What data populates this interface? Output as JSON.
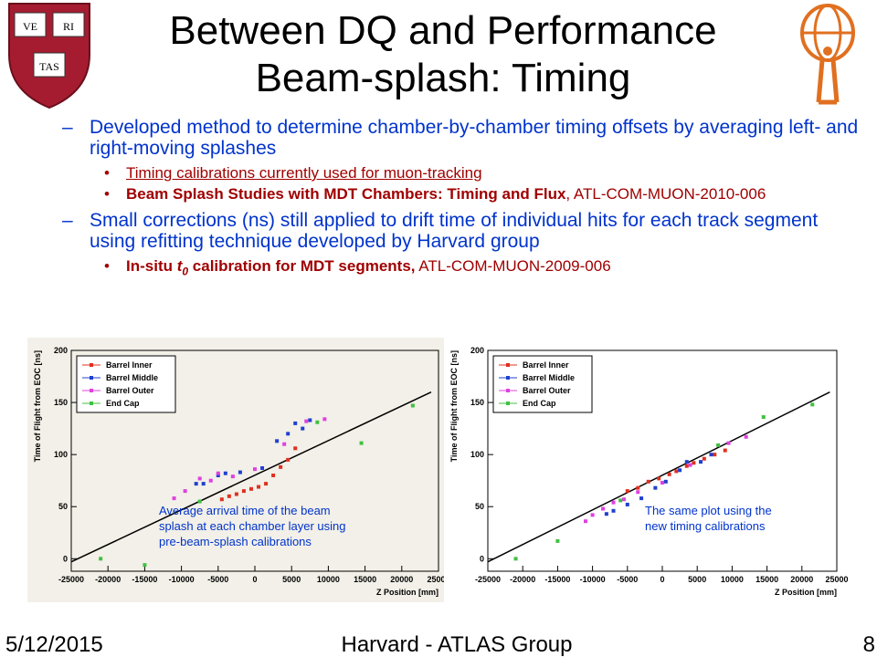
{
  "slide": {
    "title_line1": "Between DQ and Performance",
    "title_line2": "Beam-splash: Timing"
  },
  "logos": {
    "harvard": {
      "letters": [
        "VE",
        "RI",
        "TAS"
      ],
      "color": "#a51c30"
    },
    "atlas": {
      "color": "#e07020"
    }
  },
  "bullets": {
    "b1": {
      "dash": "–",
      "text": "Developed method to determine chamber-by-chamber timing offsets by averaging left- and right-moving splashes"
    },
    "b1_sub1": {
      "dot": "•",
      "text": "Timing calibrations currently used for muon-tracking"
    },
    "b1_sub2": {
      "dot": "•",
      "bold": "Beam Splash Studies with MDT Chambers: Timing and Flux",
      "rest": ", ATL-COM-MUON-2010-006"
    },
    "b2": {
      "dash": "–",
      "text": "Small corrections (ns) still applied to drift time of individual hits for each track segment using refitting technique developed by Harvard group"
    },
    "b2_sub1": {
      "dot": "•",
      "bold_a": "In-situ ",
      "italic_t": "t",
      "sub0": "0",
      "bold_b": " calibration for MDT segments,",
      "rest": " ATL-COM-MUON-2009-006"
    }
  },
  "footer": {
    "date": "5/12/2015",
    "center": "Harvard - ATLAS Group",
    "page": "8"
  },
  "colors": {
    "bullet_blue": "#0033cc",
    "bullet_red": "#a00000",
    "left_plot_bg": "#f2f0e8",
    "right_plot_bg": "#ffffff",
    "annotation": "#0033cc"
  },
  "chart_data": [
    {
      "type": "scatter",
      "xlabel": "Z Position [mm]",
      "ylabel": "Time of Flight from EOC [ns]",
      "xlim": [
        -25000,
        25000
      ],
      "ylim": [
        -12,
        200
      ],
      "xticks": [
        -25000,
        -20000,
        -15000,
        -10000,
        -5000,
        0,
        5000,
        10000,
        15000,
        20000,
        25000
      ],
      "xtick_labels": [
        "-25000",
        "-20000",
        "-15000",
        "-10000",
        "-5000",
        "0",
        "5000",
        "10000",
        "15000",
        "20000",
        "25000"
      ],
      "yticks": [
        0,
        50,
        100,
        150,
        200
      ],
      "ytick_labels": [
        "0",
        "50",
        "100",
        "150",
        "200"
      ],
      "legend_position": "top-left",
      "annotation": [
        "Average arrival time of the beam",
        "splash at each chamber layer using",
        "pre-beam-splash calibrations"
      ],
      "line": {
        "x": [
          -25000,
          24000
        ],
        "y": [
          -3,
          160
        ]
      },
      "series": [
        {
          "name": "Barrel Inner",
          "color": "#e03020",
          "points": [
            [
              -4500,
              57
            ],
            [
              -3500,
              60
            ],
            [
              -2500,
              62
            ],
            [
              -1500,
              65
            ],
            [
              -500,
              67
            ],
            [
              500,
              69
            ],
            [
              1500,
              72
            ],
            [
              2500,
              80
            ],
            [
              3500,
              88
            ],
            [
              4500,
              95
            ],
            [
              5500,
              106
            ]
          ]
        },
        {
          "name": "Barrel Middle",
          "color": "#2040d0",
          "points": [
            [
              -8000,
              72
            ],
            [
              -7000,
              72
            ],
            [
              -5000,
              80
            ],
            [
              -4000,
              82
            ],
            [
              -2000,
              83
            ],
            [
              1000,
              87
            ],
            [
              3000,
              113
            ],
            [
              4500,
              120
            ],
            [
              5500,
              130
            ],
            [
              6500,
              125
            ],
            [
              7500,
              133
            ]
          ]
        },
        {
          "name": "Barrel Outer",
          "color": "#e040e0",
          "points": [
            [
              -11000,
              58
            ],
            [
              -9500,
              65
            ],
            [
              -7500,
              77
            ],
            [
              -6000,
              75
            ],
            [
              -5000,
              82
            ],
            [
              -3000,
              79
            ],
            [
              0,
              86
            ],
            [
              4000,
              110
            ],
            [
              7000,
              132
            ],
            [
              9500,
              134
            ]
          ]
        },
        {
          "name": "End Cap",
          "color": "#40c040",
          "points": [
            [
              -21000,
              0
            ],
            [
              -15000,
              -6
            ],
            [
              -7500,
              55
            ],
            [
              8500,
              131
            ],
            [
              14500,
              111
            ],
            [
              21500,
              147
            ]
          ]
        }
      ]
    },
    {
      "type": "scatter",
      "xlabel": "Z Position [mm]",
      "ylabel": "Time of Flight from EOC [ns]",
      "xlim": [
        -25000,
        25000
      ],
      "ylim": [
        -12,
        200
      ],
      "xticks": [
        -25000,
        -20000,
        -15000,
        -10000,
        -5000,
        0,
        5000,
        10000,
        15000,
        20000,
        25000
      ],
      "xtick_labels": [
        "-25000",
        "-20000",
        "-15000",
        "-10000",
        "-5000",
        "0",
        "5000",
        "10000",
        "15000",
        "20000",
        "25000"
      ],
      "yticks": [
        0,
        50,
        100,
        150,
        200
      ],
      "ytick_labels": [
        "0",
        "50",
        "100",
        "150",
        "200"
      ],
      "legend_position": "top-left",
      "annotation": [
        "The same plot using the",
        "new timing calibrations"
      ],
      "line": {
        "x": [
          -25000,
          24000
        ],
        "y": [
          -3,
          160
        ]
      },
      "series": [
        {
          "name": "Barrel Inner",
          "color": "#e03020",
          "points": [
            [
              -5000,
              65
            ],
            [
              -3500,
              68
            ],
            [
              -2000,
              74
            ],
            [
              -500,
              77
            ],
            [
              1000,
              81
            ],
            [
              2000,
              84
            ],
            [
              3500,
              89
            ],
            [
              4500,
              92
            ],
            [
              6000,
              96
            ],
            [
              7500,
              100
            ],
            [
              9000,
              104
            ]
          ]
        },
        {
          "name": "Barrel Middle",
          "color": "#2040d0",
          "points": [
            [
              -8000,
              43
            ],
            [
              -7000,
              46
            ],
            [
              -5000,
              52
            ],
            [
              -3000,
              58
            ],
            [
              -1000,
              68
            ],
            [
              500,
              74
            ],
            [
              2500,
              85
            ],
            [
              3500,
              93
            ],
            [
              5500,
              93
            ],
            [
              7000,
              100
            ]
          ]
        },
        {
          "name": "Barrel Outer",
          "color": "#e040e0",
          "points": [
            [
              -11000,
              36
            ],
            [
              -10000,
              42
            ],
            [
              -8500,
              48
            ],
            [
              -7000,
              54
            ],
            [
              -5500,
              57
            ],
            [
              -3500,
              64
            ],
            [
              0,
              73
            ],
            [
              4000,
              90
            ],
            [
              9500,
              111
            ],
            [
              12000,
              117
            ]
          ]
        },
        {
          "name": "End Cap",
          "color": "#40c040",
          "points": [
            [
              -21000,
              0
            ],
            [
              -15000,
              17
            ],
            [
              -6000,
              56
            ],
            [
              8000,
              109
            ],
            [
              14500,
              136
            ],
            [
              21500,
              148
            ]
          ]
        }
      ]
    }
  ]
}
